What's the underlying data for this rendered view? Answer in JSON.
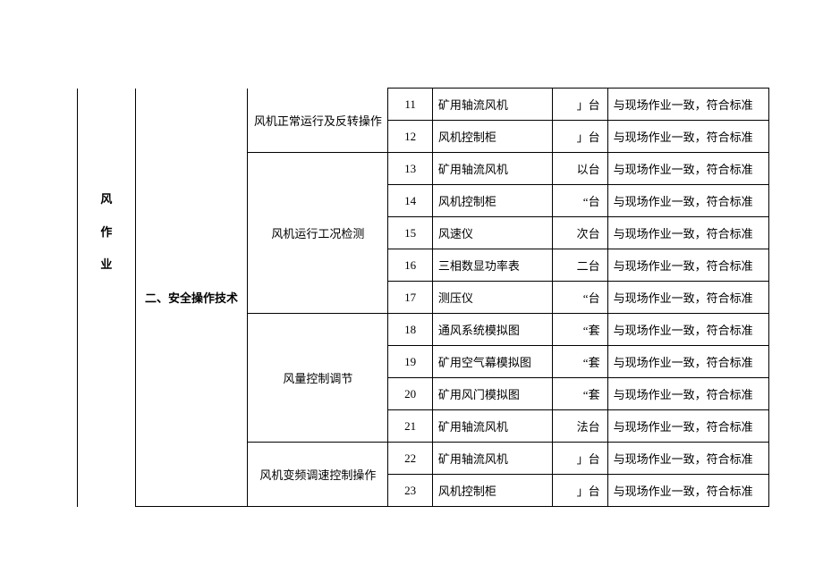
{
  "table": {
    "col_a_lines": [
      "风",
      "作",
      "业"
    ],
    "col_b": "二、安全操作技术",
    "groups": [
      {
        "label": "风机正常运行及反转操作",
        "rows": [
          {
            "n": "11",
            "item": "矿用轴流风机",
            "qty": "」台",
            "note": "与现场作业一致，符合标准"
          },
          {
            "n": "12",
            "item": "风机控制柜",
            "qty": "」台",
            "note": "与现场作业一致，符合标准"
          }
        ]
      },
      {
        "label": "风机运行工况检测",
        "rows": [
          {
            "n": "13",
            "item": "矿用轴流风机",
            "qty": "以台",
            "note": "与现场作业一致，符合标准"
          },
          {
            "n": "14",
            "item": "风机控制柜",
            "qty": "“台",
            "note": "与现场作业一致，符合标准"
          },
          {
            "n": "15",
            "item": "风速仪",
            "qty": "次台",
            "note": "与现场作业一致，符合标准"
          },
          {
            "n": "16",
            "item": "三相数显功率表",
            "qty": "二台",
            "note": "与现场作业一致，符合标准"
          },
          {
            "n": "17",
            "item": "测压仪",
            "qty": "“台",
            "note": "与现场作业一致，符合标准"
          }
        ]
      },
      {
        "label": "风量控制调节",
        "rows": [
          {
            "n": "18",
            "item": "通风系统模拟图",
            "qty": "“套",
            "note": "与现场作业一致，符合标准"
          },
          {
            "n": "19",
            "item": "矿用空气幕模拟图",
            "qty": "“套",
            "note": "与现场作业一致，符合标准"
          },
          {
            "n": "20",
            "item": "矿用风门模拟图",
            "qty": "“套",
            "note": "与现场作业一致，符合标准"
          },
          {
            "n": "21",
            "item": "矿用轴流风机",
            "qty": "法台",
            "note": "与现场作业一致，符合标准"
          }
        ]
      },
      {
        "label": "风机变频调速控制操作",
        "rows": [
          {
            "n": "22",
            "item": "矿用轴流风机",
            "qty": "」台",
            "note": "与现场作业一致，符合标准"
          },
          {
            "n": "23",
            "item": "风机控制柜",
            "qty": "」台",
            "note": "与现场作业一致，符合标准"
          }
        ]
      }
    ]
  }
}
